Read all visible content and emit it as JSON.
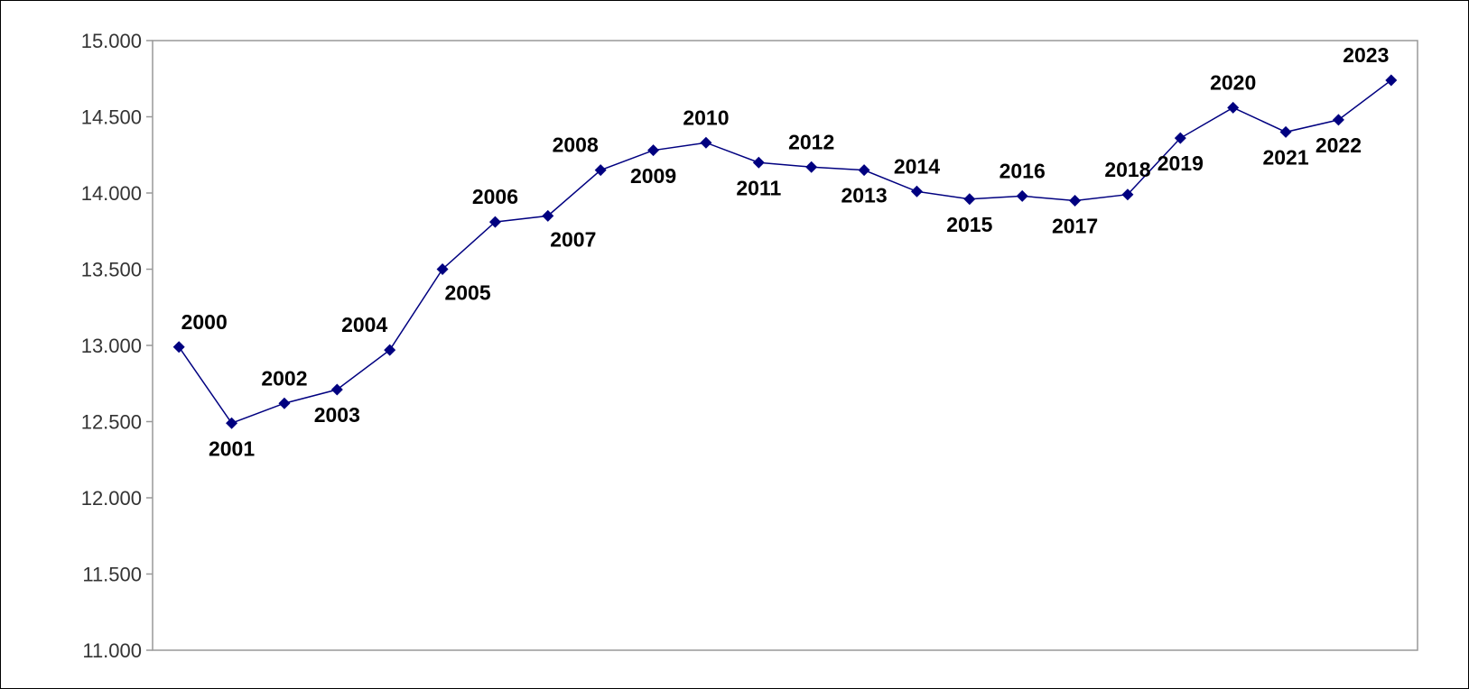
{
  "chart_data": {
    "type": "line",
    "categories": [
      "2000",
      "2001",
      "2002",
      "2003",
      "2004",
      "2005",
      "2006",
      "2007",
      "2008",
      "2009",
      "2010",
      "2011",
      "2012",
      "2013",
      "2014",
      "2015",
      "2016",
      "2017",
      "2018",
      "2019",
      "2020",
      "2021",
      "2022",
      "2023"
    ],
    "values": [
      12990,
      12490,
      12620,
      12710,
      12970,
      13500,
      13810,
      13850,
      14150,
      14280,
      14330,
      14200,
      14170,
      14150,
      14010,
      13960,
      13980,
      13950,
      13990,
      14360,
      14560,
      14400,
      14480,
      14740
    ],
    "color": "#000080",
    "ylim": [
      11000,
      15000
    ],
    "yticks": [
      {
        "value": 11000,
        "label": "11.000"
      },
      {
        "value": 11500,
        "label": "11.500"
      },
      {
        "value": 12000,
        "label": "12.000"
      },
      {
        "value": 12500,
        "label": "12.500"
      },
      {
        "value": 13000,
        "label": "13.000"
      },
      {
        "value": 13500,
        "label": "13.500"
      },
      {
        "value": 14000,
        "label": "14.000"
      },
      {
        "value": 14500,
        "label": "14.500"
      },
      {
        "value": 15000,
        "label": "15.000"
      }
    ],
    "grid": false
  }
}
